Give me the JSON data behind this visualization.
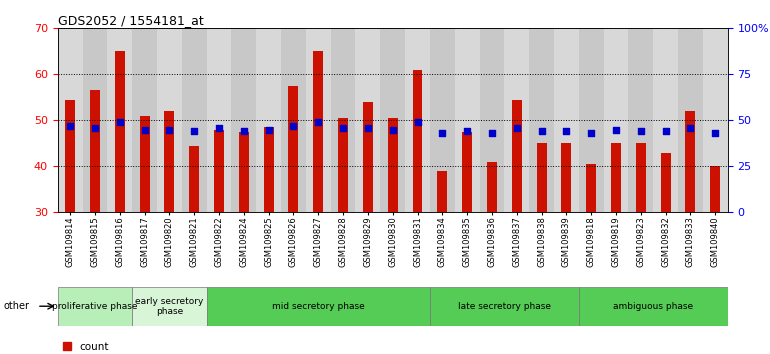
{
  "title": "GDS2052 / 1554181_at",
  "samples": [
    "GSM109814",
    "GSM109815",
    "GSM109816",
    "GSM109817",
    "GSM109820",
    "GSM109821",
    "GSM109822",
    "GSM109824",
    "GSM109825",
    "GSM109826",
    "GSM109827",
    "GSM109828",
    "GSM109829",
    "GSM109830",
    "GSM109831",
    "GSM109834",
    "GSM109835",
    "GSM109836",
    "GSM109837",
    "GSM109838",
    "GSM109839",
    "GSM109818",
    "GSM109819",
    "GSM109823",
    "GSM109832",
    "GSM109833",
    "GSM109840"
  ],
  "count_values": [
    54.5,
    56.5,
    65.0,
    51.0,
    52.0,
    44.5,
    48.0,
    47.5,
    48.5,
    57.5,
    65.0,
    50.5,
    54.0,
    50.5,
    61.0,
    39.0,
    47.5,
    41.0,
    54.5,
    45.0,
    45.0,
    40.5,
    45.0,
    45.0,
    43.0,
    52.0,
    40.0
  ],
  "percentile_values_pct": [
    47,
    46,
    49,
    45,
    45,
    44,
    46,
    44,
    45,
    47,
    49,
    46,
    46,
    45,
    49,
    43,
    44,
    43,
    46,
    44,
    44,
    43,
    45,
    44,
    44,
    46,
    43
  ],
  "phases": [
    {
      "label": "proliferative phase",
      "start": 0,
      "end": 3,
      "color": "#c0f0c0"
    },
    {
      "label": "early secretory\nphase",
      "start": 3,
      "end": 6,
      "color": "#dff5df"
    },
    {
      "label": "mid secretory phase",
      "start": 6,
      "end": 15,
      "color": "#55cc55"
    },
    {
      "label": "late secretory phase",
      "start": 15,
      "end": 21,
      "color": "#55cc55"
    },
    {
      "label": "ambiguous phase",
      "start": 21,
      "end": 27,
      "color": "#55cc55"
    }
  ],
  "ylim_left": [
    30,
    70
  ],
  "ylim_right": [
    0,
    100
  ],
  "yticks_left": [
    30,
    40,
    50,
    60,
    70
  ],
  "yticks_right": [
    0,
    25,
    50,
    75,
    100
  ],
  "bar_color": "#cc1100",
  "dot_color": "#0000cc",
  "bg_color": "#cccccc",
  "col_bg_even": "#c8c8c8",
  "col_bg_odd": "#d8d8d8"
}
